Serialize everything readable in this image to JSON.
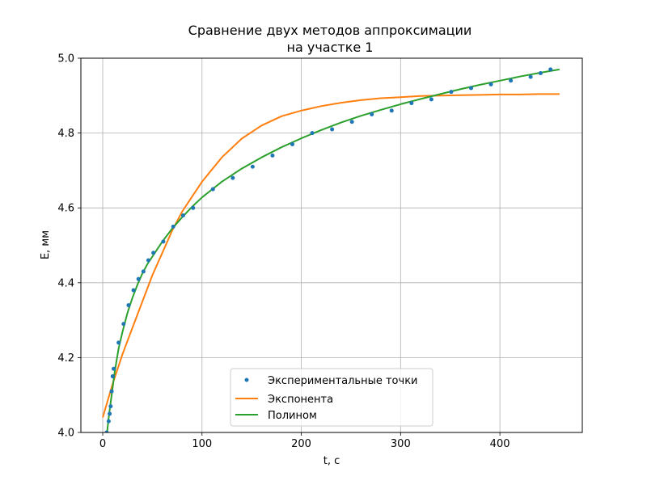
{
  "chart_data": {
    "type": "line",
    "title_lines": [
      "Сравнение двух методов аппроксимации",
      "на участке 1"
    ],
    "xlabel": "t, с",
    "ylabel": "E, мм",
    "xlim": [
      -22,
      483
    ],
    "ylim": [
      4.0,
      5.0
    ],
    "xticks": [
      0,
      100,
      200,
      300,
      400
    ],
    "yticks": [
      4.0,
      4.2,
      4.4,
      4.6,
      4.8,
      5.0
    ],
    "xtick_labels": [
      "0",
      "100",
      "200",
      "300",
      "400"
    ],
    "ytick_labels": [
      "4.0",
      "4.2",
      "4.4",
      "4.6",
      "4.8",
      "5.0"
    ],
    "grid": true,
    "legend_position": "lower-center",
    "series": [
      {
        "name": "Экспериментальные точки",
        "kind": "scatter",
        "color": "#1f77b4",
        "x": [
          4,
          6,
          7,
          8,
          9,
          10,
          11,
          16,
          21,
          26,
          31,
          36,
          41,
          46,
          51,
          61,
          71,
          81,
          91,
          111,
          131,
          151,
          171,
          191,
          211,
          231,
          251,
          271,
          291,
          311,
          331,
          351,
          371,
          391,
          411,
          431,
          441,
          451
        ],
        "y": [
          4.0,
          4.03,
          4.05,
          4.07,
          4.11,
          4.15,
          4.17,
          4.24,
          4.29,
          4.34,
          4.38,
          4.41,
          4.43,
          4.46,
          4.48,
          4.51,
          4.55,
          4.58,
          4.6,
          4.65,
          4.68,
          4.71,
          4.74,
          4.77,
          4.8,
          4.81,
          4.83,
          4.85,
          4.86,
          4.88,
          4.89,
          4.91,
          4.92,
          4.93,
          4.94,
          4.95,
          4.96,
          4.97
        ]
      },
      {
        "name": "Экспонента",
        "kind": "line",
        "color": "#ff7f0e",
        "x": [
          0,
          10,
          20,
          30,
          40,
          50,
          60,
          70,
          80,
          90,
          100,
          120,
          140,
          160,
          180,
          200,
          220,
          240,
          260,
          280,
          300,
          320,
          340,
          360,
          380,
          400,
          420,
          440,
          460
        ],
        "y": [
          4.04,
          4.13,
          4.21,
          4.28,
          4.35,
          4.42,
          4.48,
          4.54,
          4.59,
          4.63,
          4.67,
          4.735,
          4.785,
          4.82,
          4.845,
          4.86,
          4.872,
          4.881,
          4.888,
          4.893,
          4.896,
          4.899,
          4.9,
          4.901,
          4.902,
          4.903,
          4.903,
          4.904,
          4.904
        ]
      },
      {
        "name": "Полином",
        "kind": "line",
        "color": "#2ca02c",
        "x": [
          4,
          6,
          8,
          10,
          12,
          16,
          20,
          25,
          30,
          35,
          40,
          45,
          50,
          60,
          70,
          80,
          90,
          100,
          120,
          140,
          160,
          180,
          200,
          220,
          240,
          260,
          280,
          300,
          320,
          340,
          360,
          380,
          400,
          420,
          440,
          460
        ],
        "y": [
          3.99,
          4.04,
          4.08,
          4.12,
          4.16,
          4.225,
          4.27,
          4.32,
          4.36,
          4.395,
          4.425,
          4.45,
          4.47,
          4.51,
          4.545,
          4.575,
          4.603,
          4.628,
          4.67,
          4.705,
          4.735,
          4.762,
          4.786,
          4.808,
          4.828,
          4.846,
          4.862,
          4.877,
          4.891,
          4.904,
          4.917,
          4.929,
          4.94,
          4.951,
          4.961,
          4.97
        ]
      }
    ]
  }
}
